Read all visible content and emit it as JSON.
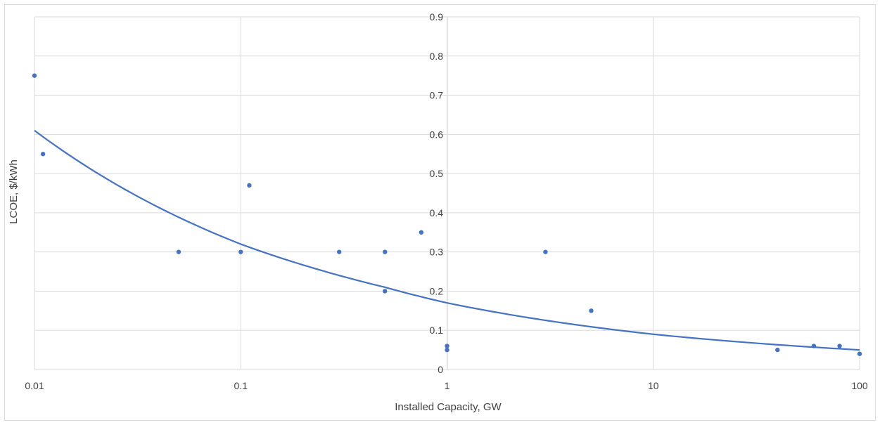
{
  "chart_data": {
    "type": "scatter",
    "title": "",
    "xlabel": "Installed Capacity, GW",
    "ylabel": "LCOE, $/kWh",
    "x_scale": "log",
    "xlim": [
      0.01,
      100
    ],
    "ylim": [
      0,
      0.9
    ],
    "x_ticks": [
      "0.01",
      "0.1",
      "1",
      "10",
      "100"
    ],
    "x_tick_values": [
      0.01,
      0.1,
      1,
      10,
      100
    ],
    "y_ticks": [
      "0",
      "0.1",
      "0.2",
      "0.3",
      "0.4",
      "0.5",
      "0.6",
      "0.7",
      "0.8",
      "0.9"
    ],
    "y_tick_values": [
      0,
      0.1,
      0.2,
      0.3,
      0.4,
      0.5,
      0.6,
      0.7,
      0.8,
      0.9
    ],
    "grid": true,
    "legend": "none",
    "colors": {
      "points": "#4472c4",
      "trendline": "#4472c4",
      "grid": "#d9d9d9",
      "text": "#404040"
    },
    "series": [
      {
        "points": [
          [
            0.01,
            0.75
          ],
          [
            0.011,
            0.55
          ],
          [
            0.05,
            0.3
          ],
          [
            0.1,
            0.3
          ],
          [
            0.11,
            0.47
          ],
          [
            0.3,
            0.3
          ],
          [
            0.5,
            0.3
          ],
          [
            0.5,
            0.2
          ],
          [
            0.75,
            0.35
          ],
          [
            1.0,
            0.06
          ],
          [
            1.0,
            0.05
          ],
          [
            3.0,
            0.3
          ],
          [
            5.0,
            0.15
          ],
          [
            40,
            0.05
          ],
          [
            60,
            0.06
          ],
          [
            80,
            0.06
          ],
          [
            100,
            0.04
          ]
        ]
      }
    ],
    "trendline": {
      "type": "power",
      "points": [
        [
          0.01,
          0.61
        ],
        [
          0.1,
          0.32
        ],
        [
          0.5,
          0.21
        ],
        [
          1,
          0.17
        ],
        [
          10,
          0.09
        ],
        [
          100,
          0.05
        ]
      ]
    }
  }
}
